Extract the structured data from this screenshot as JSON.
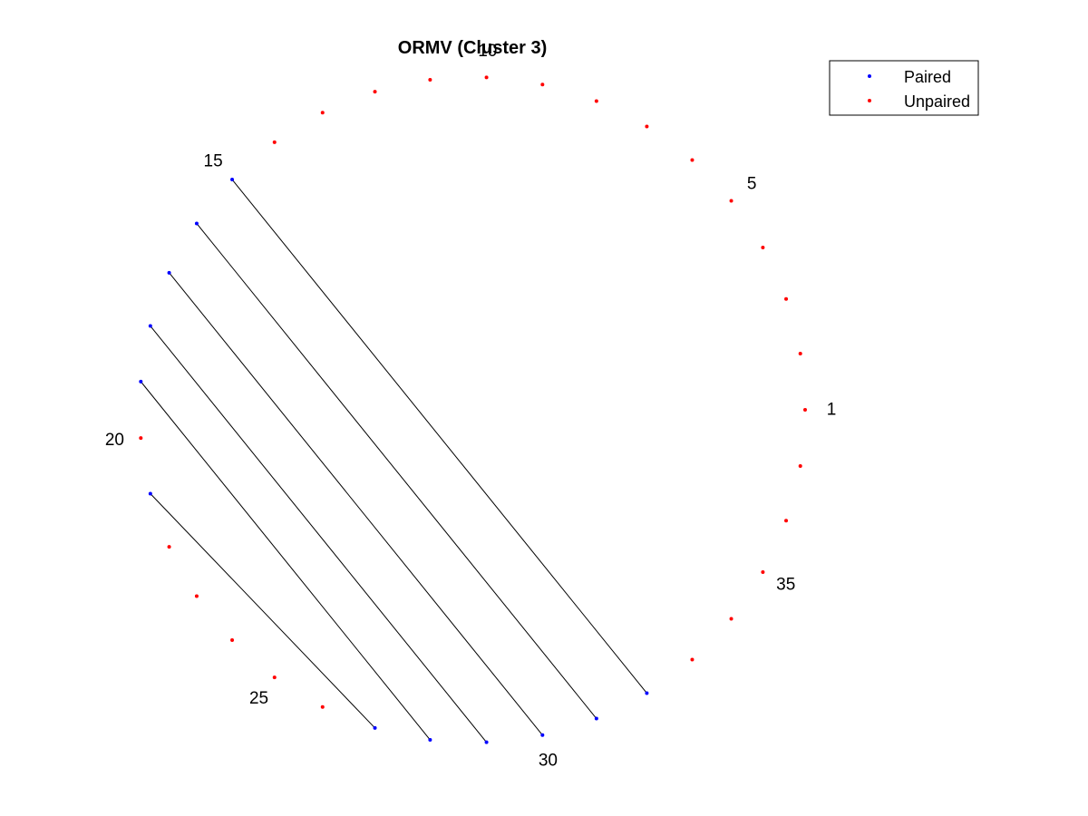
{
  "chart_data": {
    "type": "scatter",
    "title": "ORMV (Cluster 3)",
    "num_nodes": 37,
    "start_angle_deg": 0,
    "direction": "counterclockwise",
    "labeled_nodes": [
      1,
      5,
      10,
      15,
      20,
      25,
      30,
      35
    ],
    "legend": {
      "placement": "top-right",
      "entries": [
        {
          "key": "paired",
          "label": "Paired",
          "color": "#0000ff"
        },
        {
          "key": "unpaired",
          "label": "Unpaired",
          "color": "#ff0000"
        }
      ]
    },
    "pairs": [
      [
        15,
        32
      ],
      [
        16,
        31
      ],
      [
        17,
        30
      ],
      [
        18,
        29
      ],
      [
        19,
        28
      ],
      [
        21,
        27
      ]
    ],
    "line_color": "#000000",
    "xlabel": "",
    "ylabel": "",
    "grid": false
  }
}
